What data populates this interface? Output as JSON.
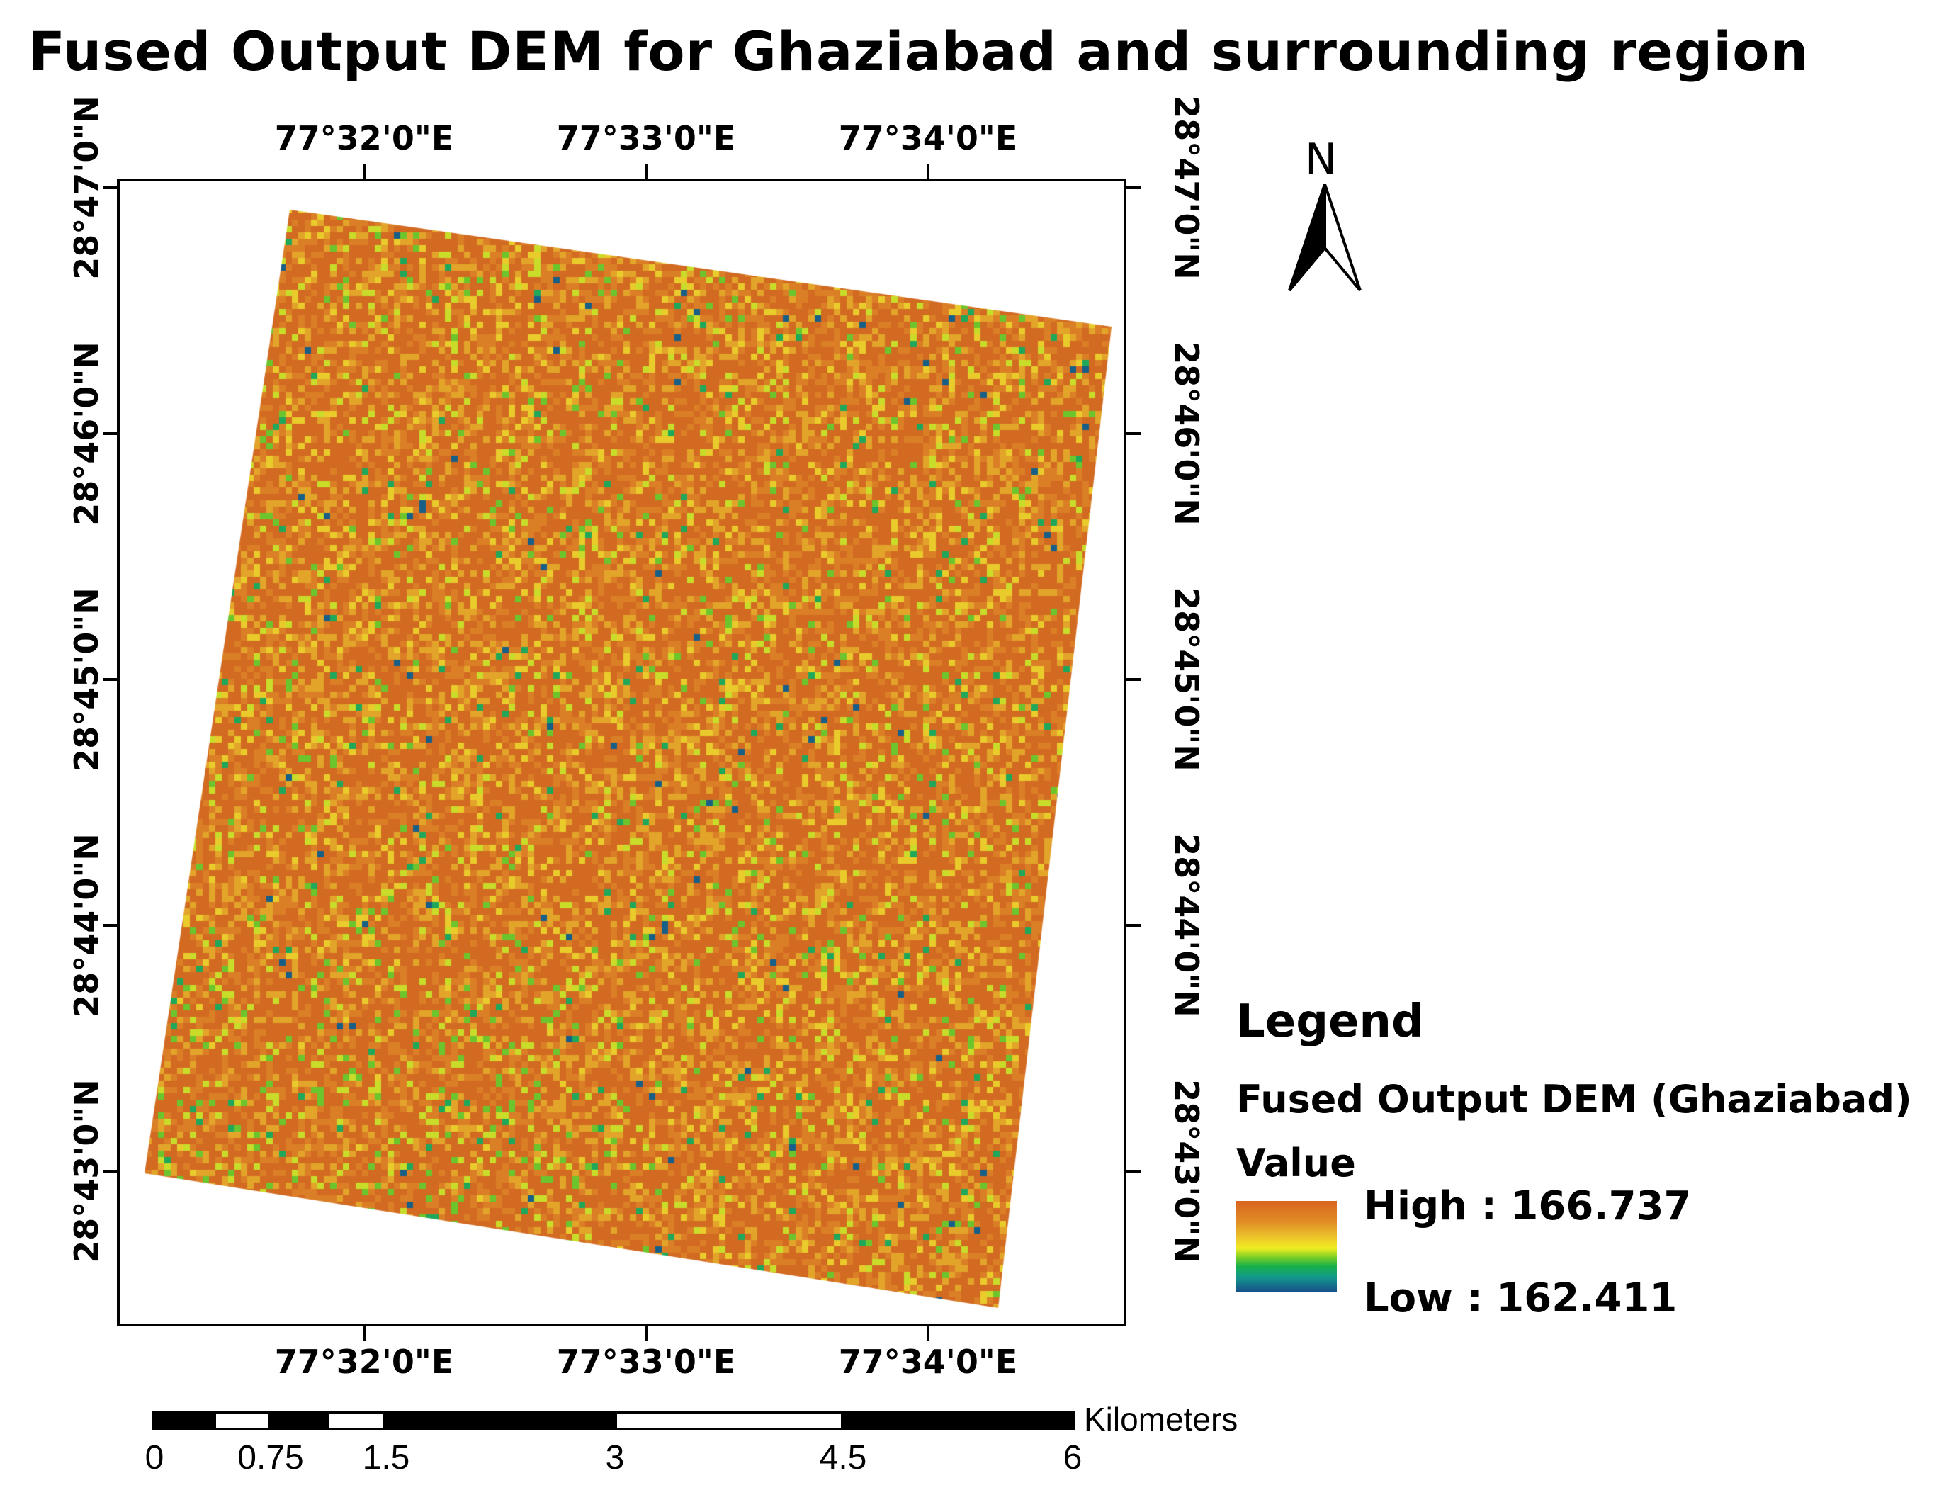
{
  "title": "Fused Output DEM for Ghaziabad and surrounding region",
  "longitude_labels": [
    "77°32'0\"E",
    "77°33'0\"E",
    "77°34'0\"E"
  ],
  "latitude_labels": [
    "28°47'0\"N",
    "28°46'0\"N",
    "28°45'0\"N",
    "28°44'0\"N",
    "28°43'0\"N"
  ],
  "north_arrow": {
    "letter": "N",
    "icon": "north-arrow-icon"
  },
  "legend": {
    "title": "Legend",
    "layer": "Fused Output DEM (Ghaziabad)",
    "field": "Value",
    "high": "High : 166.737",
    "low": "Low : 162.411",
    "high_value": 166.737,
    "low_value": 162.411,
    "colors": [
      "#d9651f",
      "#ecc52a",
      "#f1ec22",
      "#17b04a",
      "#164f8a"
    ]
  },
  "scalebar": {
    "unit": "Kilometers",
    "labels": [
      "0",
      "0.75",
      "1.5",
      "3",
      "4.5",
      "6"
    ]
  }
}
